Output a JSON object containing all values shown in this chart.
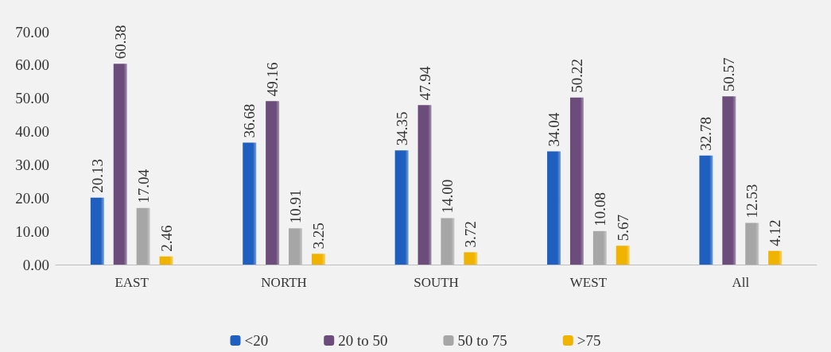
{
  "chart_data": {
    "type": "bar",
    "categories": [
      "EAST",
      "NORTH",
      "SOUTH",
      "WEST",
      "All"
    ],
    "series": [
      {
        "name": "<20",
        "color": "#1f5fbf",
        "values": [
          20.13,
          36.68,
          34.35,
          34.04,
          32.78
        ],
        "value_labels": [
          "20.13",
          "36.68",
          "34.35",
          "34.04",
          "32.78"
        ]
      },
      {
        "name": "20 to 50",
        "color": "#6b4c7a",
        "values": [
          60.38,
          49.16,
          47.94,
          50.22,
          50.57
        ],
        "value_labels": [
          "60.38",
          "49.16",
          "47.94",
          "50.22",
          "50.57"
        ]
      },
      {
        "name": "50 to 75",
        "color": "#a6a6a6",
        "values": [
          17.04,
          10.91,
          14.0,
          10.08,
          12.53
        ],
        "value_labels": [
          "17.04",
          "10.91",
          "14.00",
          "10.08",
          "12.53"
        ]
      },
      {
        "name": ">75",
        "color": "#f0b400",
        "values": [
          2.46,
          3.25,
          3.72,
          5.67,
          4.12
        ],
        "value_labels": [
          "2.46",
          "3.25",
          "3.72",
          "5.67",
          "4.12"
        ]
      }
    ],
    "ylim": [
      0,
      70
    ],
    "yticks": [
      {
        "value": 0,
        "label": "0.00"
      },
      {
        "value": 10,
        "label": "10.00"
      },
      {
        "value": 20,
        "label": "20.00"
      },
      {
        "value": 30,
        "label": "30.00"
      },
      {
        "value": 40,
        "label": "40.00"
      },
      {
        "value": 50,
        "label": "50.00"
      },
      {
        "value": 60,
        "label": "60.00"
      },
      {
        "value": 70,
        "label": "70.00"
      }
    ],
    "grid": false,
    "legend": "bottom"
  }
}
